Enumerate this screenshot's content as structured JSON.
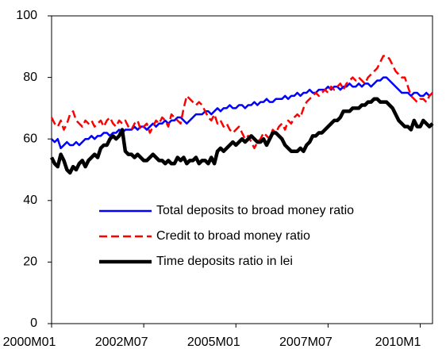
{
  "chart_data": {
    "type": "line",
    "categories": [
      "2000M01",
      null,
      null,
      null,
      null,
      null,
      null,
      null,
      null,
      null,
      null,
      null,
      null,
      null,
      null,
      null,
      null,
      null,
      null,
      null,
      null,
      null,
      null,
      null,
      null,
      null,
      null,
      null,
      null,
      null,
      "2002M07",
      null,
      null,
      null,
      null,
      null,
      null,
      null,
      null,
      null,
      null,
      null,
      null,
      null,
      null,
      null,
      null,
      null,
      null,
      null,
      null,
      null,
      null,
      null,
      null,
      null,
      null,
      null,
      null,
      null,
      "2005M01",
      null,
      null,
      null,
      null,
      null,
      null,
      null,
      null,
      null,
      null,
      null,
      null,
      null,
      null,
      null,
      null,
      null,
      null,
      null,
      null,
      null,
      null,
      null,
      null,
      null,
      null,
      null,
      null,
      null,
      "2007M07",
      null,
      null,
      null,
      null,
      null,
      null,
      null,
      null,
      null,
      null,
      null,
      null,
      null,
      null,
      null,
      null,
      null,
      null,
      null,
      null,
      null,
      null,
      null,
      null,
      null,
      null,
      null,
      null,
      null,
      "2010M1",
      null,
      null,
      null,
      null
    ],
    "series": [
      {
        "name": "Total deposits to broad money ratio",
        "color": "#0000ff",
        "style": "solid",
        "values": [
          60,
          59,
          60,
          57,
          58,
          59,
          58,
          58,
          59,
          58,
          59,
          60,
          60,
          61,
          60,
          61,
          61,
          62,
          62,
          61,
          62,
          62,
          63,
          62,
          63,
          63,
          63,
          64,
          63,
          64,
          64,
          63,
          64,
          65,
          64,
          65,
          65,
          66,
          65,
          66,
          66,
          67,
          67,
          66,
          65,
          66,
          67,
          68,
          68,
          68,
          69,
          69,
          68,
          69,
          70,
          69,
          70,
          70,
          71,
          70,
          70,
          71,
          71,
          70,
          71,
          71,
          72,
          71,
          72,
          72,
          73,
          72,
          72,
          73,
          73,
          73,
          74,
          73,
          74,
          74,
          75,
          74,
          75,
          75,
          76,
          75,
          75,
          76,
          76,
          76,
          77,
          76,
          77,
          77,
          76,
          77,
          77,
          78,
          77,
          77,
          78,
          77,
          78,
          78,
          77,
          78,
          79,
          79,
          80,
          80,
          79,
          78,
          77,
          76,
          75,
          75,
          75,
          74,
          75,
          75,
          74,
          74,
          75,
          74,
          75
        ]
      },
      {
        "name": "Credit to broad money ratio",
        "color": "#ff0000",
        "style": "dashed",
        "values": [
          67,
          65,
          64,
          66,
          63,
          65,
          68,
          69,
          66,
          65,
          64,
          66,
          65,
          66,
          64,
          65,
          66,
          64,
          66,
          67,
          65,
          64,
          66,
          65,
          66,
          64,
          63,
          65,
          66,
          63,
          64,
          65,
          62,
          64,
          66,
          65,
          67,
          66,
          64,
          68,
          67,
          66,
          65,
          70,
          74,
          73,
          72,
          71,
          72,
          71,
          69,
          67,
          66,
          68,
          65,
          66,
          64,
          65,
          63,
          62,
          63,
          64,
          62,
          60,
          61,
          59,
          57,
          59,
          60,
          62,
          61,
          60,
          63,
          62,
          64,
          65,
          63,
          66,
          65,
          67,
          68,
          67,
          70,
          72,
          73,
          74,
          75,
          74,
          75,
          76,
          75,
          77,
          76,
          77,
          78,
          76,
          78,
          79,
          80,
          79,
          80,
          79,
          78,
          80,
          81,
          82,
          83,
          85,
          87,
          87,
          86,
          84,
          82,
          81,
          80,
          80,
          77,
          74,
          73,
          72,
          73,
          73,
          72,
          74,
          75
        ]
      },
      {
        "name": "Time deposits ratio in lei",
        "color": "#000000",
        "style": "thick",
        "values": [
          54,
          52,
          51,
          55,
          53,
          50,
          49,
          51,
          50,
          52,
          53,
          51,
          53,
          54,
          55,
          54,
          57,
          58,
          58,
          60,
          61,
          60,
          61,
          63,
          56,
          55,
          55,
          54,
          55,
          54,
          53,
          53,
          54,
          55,
          54,
          53,
          53,
          52,
          53,
          52,
          52,
          54,
          53,
          54,
          52,
          53,
          53,
          54,
          52,
          53,
          53,
          52,
          54,
          52,
          56,
          57,
          56,
          57,
          58,
          59,
          58,
          59,
          60,
          59,
          60,
          61,
          60,
          59,
          59,
          60,
          58,
          60,
          62,
          62,
          61,
          60,
          58,
          57,
          56,
          56,
          56,
          57,
          56,
          58,
          59,
          61,
          61,
          62,
          62,
          63,
          64,
          65,
          66,
          66,
          67,
          69,
          69,
          69,
          70,
          70,
          70,
          71,
          71,
          72,
          72,
          73,
          73,
          72,
          72,
          72,
          71,
          70,
          68,
          66,
          65,
          64,
          64,
          63,
          66,
          64,
          64,
          66,
          65,
          64,
          65
        ]
      }
    ],
    "ylim": [
      0,
      100
    ],
    "yticks": [
      0,
      20,
      40,
      60,
      80,
      100
    ],
    "grid": false,
    "legend": "lower right"
  }
}
